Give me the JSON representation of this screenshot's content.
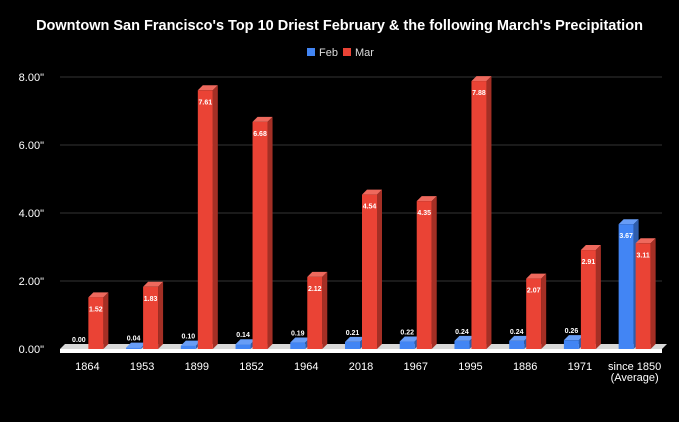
{
  "chart_data": {
    "type": "bar",
    "title": "Downtown San Francisco's Top 10 Driest February & the following March's Precipitation",
    "categories": [
      "1864",
      "1953",
      "1899",
      "1852",
      "1964",
      "2018",
      "1967",
      "1995",
      "1886",
      "1971",
      "since 1850\n(Average)"
    ],
    "series": [
      {
        "name": "Feb",
        "color": "#4285f4",
        "values": [
          0.0,
          0.04,
          0.1,
          0.14,
          0.19,
          0.21,
          0.22,
          0.24,
          0.24,
          0.26,
          3.67
        ],
        "labels": [
          "0.00",
          "0.04",
          "0.10",
          "0.14",
          "0.19",
          "0.21",
          "0.22",
          "0.24",
          "0.24",
          "0.26",
          "3.67"
        ]
      },
      {
        "name": "Mar",
        "color": "#ea4335",
        "values": [
          1.52,
          1.83,
          7.61,
          6.68,
          2.12,
          4.54,
          4.35,
          7.88,
          2.07,
          2.91,
          3.11
        ],
        "labels": [
          "1.52",
          "1.83",
          "7.61",
          "6.68",
          "2.12",
          "4.54",
          "4.35",
          "7.88",
          "2.07",
          "2.91",
          "3.11"
        ]
      }
    ],
    "yticks": [
      "0.00\"",
      "2.00\"",
      "4.00\"",
      "6.00\"",
      "8.00\""
    ],
    "ylim": [
      0,
      8
    ],
    "grid": true,
    "legend_position": "top-center",
    "style": "3d-bars"
  }
}
